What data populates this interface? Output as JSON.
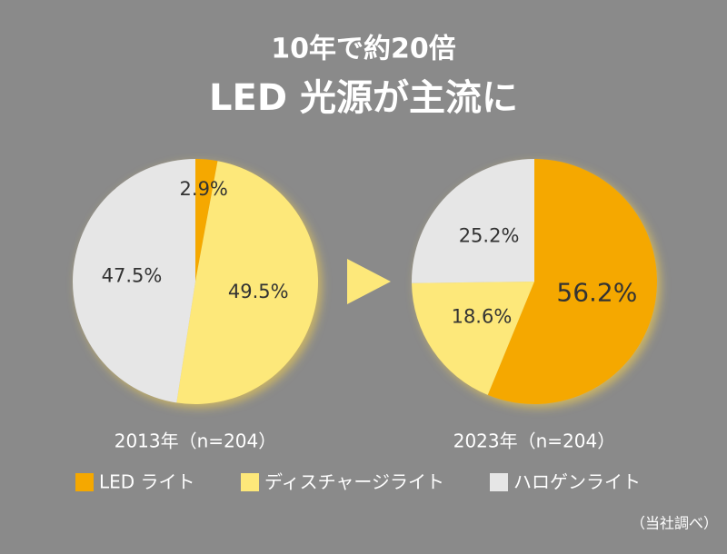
{
  "title_line1": "10年で約20倍",
  "title_line2": "LED 光源が主流に",
  "chart_data": [
    {
      "type": "pie",
      "label": "2013年（n=204）",
      "categories": [
        "LED ライト",
        "ディスチャージライト",
        "ハロゲンライト"
      ],
      "colors": [
        "#f5a800",
        "#fde87a",
        "#e6e6e6"
      ],
      "values": [
        2.9,
        49.5,
        47.5
      ],
      "value_labels": [
        "2.9%",
        "49.5%",
        "47.5%"
      ]
    },
    {
      "type": "pie",
      "label": "2023年（n=204）",
      "categories": [
        "LED ライト",
        "ディスチャージライト",
        "ハロゲンライト"
      ],
      "colors": [
        "#f5a800",
        "#fde87a",
        "#e6e6e6"
      ],
      "values": [
        56.2,
        18.6,
        25.2
      ],
      "value_labels": [
        "56.2%",
        "18.6%",
        "25.2%"
      ]
    }
  ],
  "note": "（当社調べ）"
}
